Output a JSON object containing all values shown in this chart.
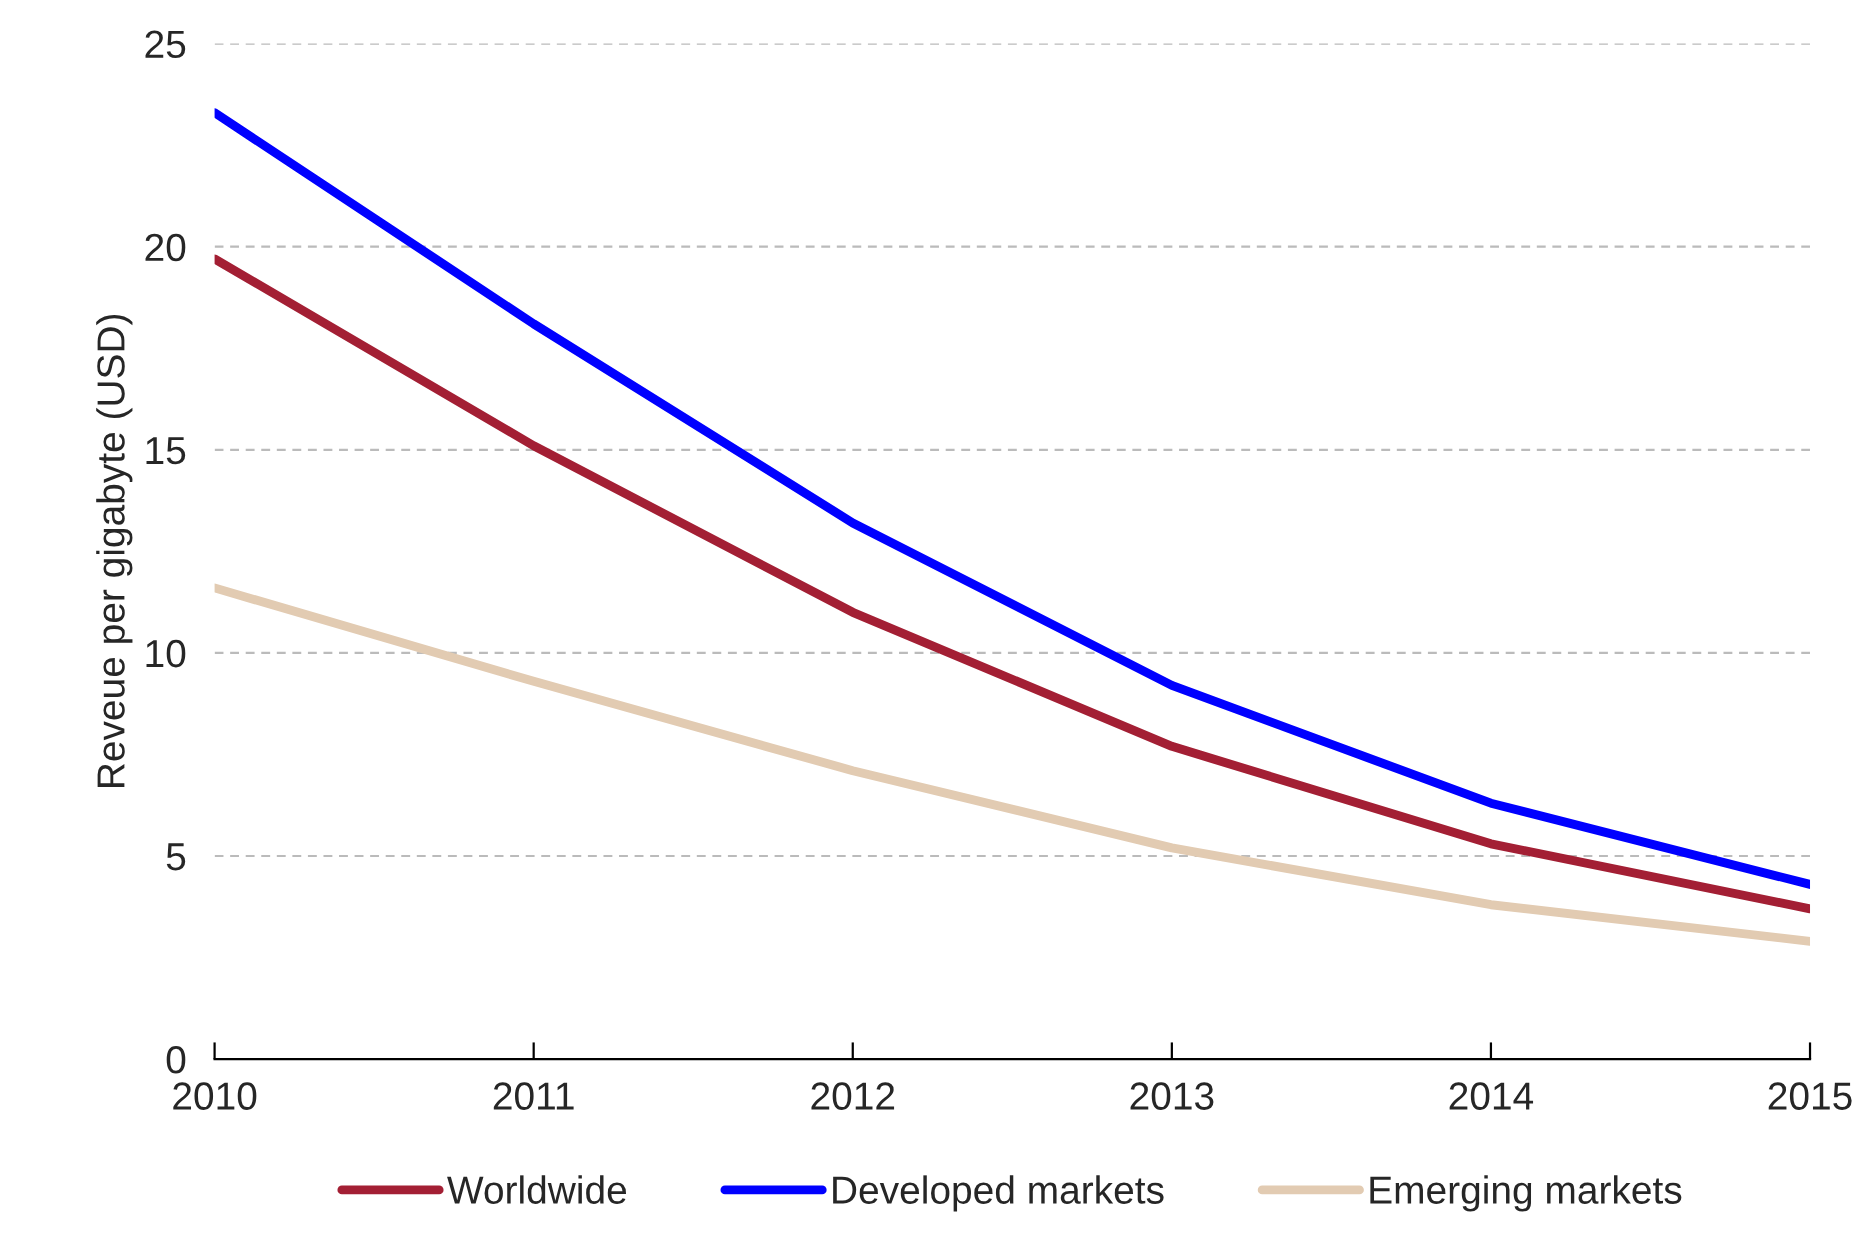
{
  "chart_data": {
    "type": "line",
    "ylabel": "Reveue per gigabyte (USD)",
    "x": [
      2010,
      2011,
      2012,
      2013,
      2014,
      2015
    ],
    "series": [
      {
        "name": "Worldwide",
        "color": "#a31f34",
        "values": [
          19.7,
          15.1,
          11.0,
          7.7,
          5.3,
          3.7
        ]
      },
      {
        "name": "Developed markets",
        "color": "#0000ff",
        "values": [
          23.3,
          18.1,
          13.2,
          9.2,
          6.3,
          4.3
        ]
      },
      {
        "name": "Emerging markets",
        "color": "#e2cbb2",
        "values": [
          11.6,
          9.3,
          7.1,
          5.2,
          3.8,
          2.9
        ]
      }
    ],
    "xlim": [
      2010,
      2015
    ],
    "xticks": [
      2010,
      2011,
      2012,
      2013,
      2014,
      2015
    ],
    "ylim": [
      0,
      25
    ],
    "yticks": [
      0,
      5,
      10,
      15,
      20,
      25
    ],
    "grid": "y",
    "legend": "bottom",
    "marker": "none",
    "line_style": "solid"
  }
}
